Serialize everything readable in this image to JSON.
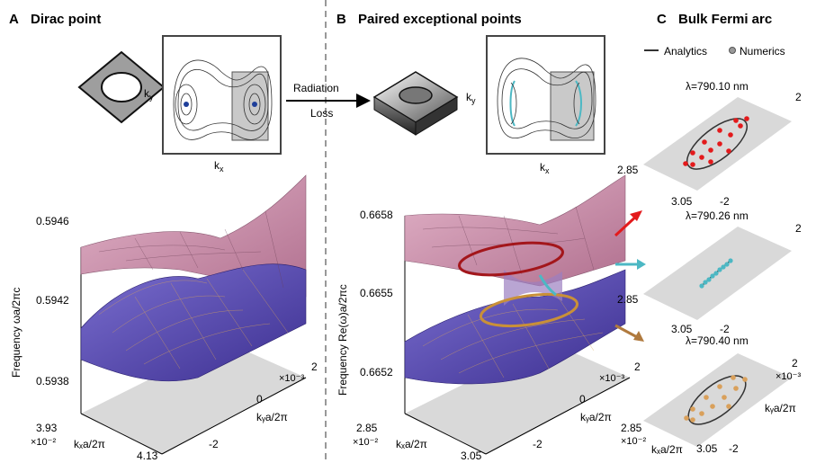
{
  "panels": {
    "a": {
      "letter": "A",
      "title": "Dirac point",
      "ky_label": "k",
      "ky_sub": "y",
      "kx_label": "k",
      "kx_sub": "x",
      "z_ticks": [
        "0.5946",
        "0.5942",
        "0.5938"
      ],
      "z_axis_label": "Frequency ωa/2πc",
      "x_ticks": [
        "3.93",
        "4.13"
      ],
      "x_multiplier": "×10⁻²",
      "x_axis_label": "kₓa/2π",
      "y_ticks": [
        "2",
        "0",
        "-2"
      ],
      "y_multiplier": "×10⁻³",
      "y_axis_label": "kᵧa/2π"
    },
    "b": {
      "letter": "B",
      "title": "Paired exceptional points",
      "ky_label": "k",
      "ky_sub": "y",
      "kx_label": "k",
      "kx_sub": "x",
      "z_ticks": [
        "0.6658",
        "0.6655",
        "0.6652"
      ],
      "z_axis_label": "Frequency Re(ω)a/2πc",
      "x_ticks": [
        "2.85",
        "3.05"
      ],
      "x_multiplier": "×10⁻²",
      "x_axis_label": "kₓa/2π",
      "y_ticks": [
        "2",
        "0",
        "-2"
      ],
      "y_multiplier": "×10⁻³",
      "y_axis_label": "kᵧa/2π"
    },
    "c": {
      "letter": "C",
      "title": "Bulk Fermi arc",
      "legend_analytics": "Analytics",
      "legend_numerics": "Numerics",
      "plots": [
        {
          "lambda": "λ=790.10 nm",
          "color": "#e31a1c"
        },
        {
          "lambda": "λ=790.26 nm",
          "color": "#4cb8c4"
        },
        {
          "lambda": "λ=790.40 nm",
          "color": "#d9a05b"
        }
      ],
      "tick_top": "2",
      "tick_bottom": "-2",
      "tick_left": "2.85",
      "tick_right": "3.05",
      "x_multiplier": "×10⁻²",
      "y_multiplier": "×10⁻³",
      "x_axis_label": "kₓa/2π",
      "y_axis_label": "kᵧa/2π"
    }
  },
  "arrow_label_top": "Radiation",
  "arrow_label_bottom": "Loss",
  "colors": {
    "upper_surface": "#c98aa8",
    "lower_surface": "#5b4fb0",
    "grid_line": "#d7a35a",
    "red_ring": "#a3161b",
    "gold_ring": "#c99038",
    "cyan": "#4cb8c4",
    "floor": "#d9d9d9"
  }
}
